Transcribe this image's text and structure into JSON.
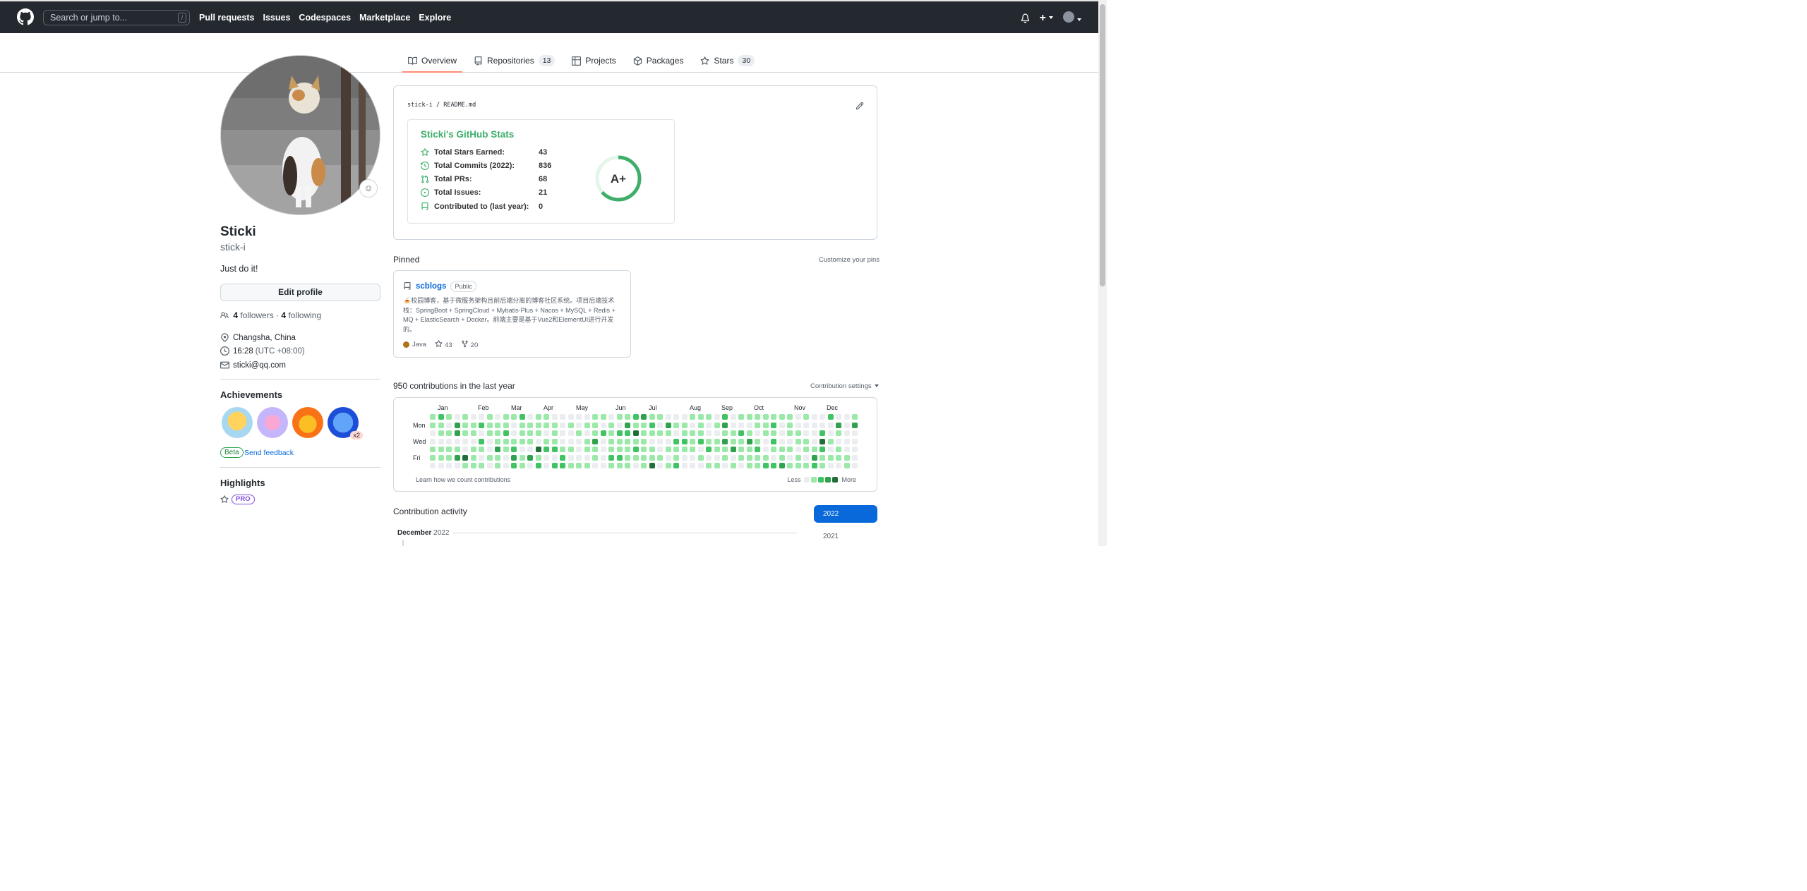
{
  "header": {
    "search_placeholder": "Search or jump to...",
    "search_shortcut": "/",
    "nav": [
      "Pull requests",
      "Issues",
      "Codespaces",
      "Marketplace",
      "Explore"
    ],
    "plus": "+"
  },
  "tabs": [
    {
      "label": "Overview",
      "icon": "book-icon"
    },
    {
      "label": "Repositories",
      "icon": "repo-icon",
      "count": "13"
    },
    {
      "label": "Projects",
      "icon": "table-icon"
    },
    {
      "label": "Packages",
      "icon": "package-icon"
    },
    {
      "label": "Stars",
      "icon": "star-icon",
      "count": "30"
    }
  ],
  "profile": {
    "name": "Sticki",
    "login": "stick-i",
    "bio": "Just do it!",
    "edit_label": "Edit profile",
    "followers": "4",
    "followers_label": "followers",
    "sep": "·",
    "following": "4",
    "following_label": "following",
    "location": "Changsha, China",
    "time": "16:28",
    "tz": "(UTC +08:00)",
    "email": "sticki@qq.com"
  },
  "achievements": {
    "title": "Achievements",
    "x2": "x2",
    "beta": "Beta",
    "feedback": "Send feedback"
  },
  "highlights": {
    "title": "Highlights",
    "pro": "PRO"
  },
  "readme": {
    "owner": "stick-i",
    "slash": "/",
    "file": "README.md",
    "stats_title": "Sticki's GitHub Stats",
    "rows": [
      {
        "label": "Total Stars Earned:",
        "value": "43"
      },
      {
        "label": "Total Commits (2022):",
        "value": "836"
      },
      {
        "label": "Total PRs:",
        "value": "68"
      },
      {
        "label": "Total Issues:",
        "value": "21"
      },
      {
        "label": "Contributed to (last year):",
        "value": "0"
      }
    ],
    "grade": "A+"
  },
  "pinned": {
    "title": "Pinned",
    "customize": "Customize your pins",
    "repo": "scblogs",
    "visibility": "Public",
    "description": "🍝校园博客，基于微服务架构且前后端分离的博客社区系统。项目后端技术栈：SpringBoot + SpringCloud + Mybatis-Plus + Nacos + MySQL + Redis + MQ + ElasticSearch + Docker。前端主要是基于Vue2和ElementUI进行开发的。",
    "language": "Java",
    "language_color": "#b07219",
    "stars": "43",
    "forks": "20"
  },
  "contributions": {
    "title": "950 contributions in the last year",
    "settings": "Contribution settings",
    "months": [
      "Jan",
      "Feb",
      "Mar",
      "Apr",
      "May",
      "Jun",
      "Jul",
      "Aug",
      "Sep",
      "Oct",
      "Nov",
      "Dec"
    ],
    "days": [
      "Mon",
      "Wed",
      "Fri"
    ],
    "learn": "Learn how we count contributions",
    "less": "Less",
    "more": "More",
    "colors": [
      "#ebedf0",
      "#9be9a8",
      "#40c463",
      "#30a14e",
      "#216e39"
    ]
  },
  "activity": {
    "title": "Contribution activity",
    "years": [
      "2022",
      "2021"
    ],
    "month": "December",
    "month_year": "2022"
  }
}
